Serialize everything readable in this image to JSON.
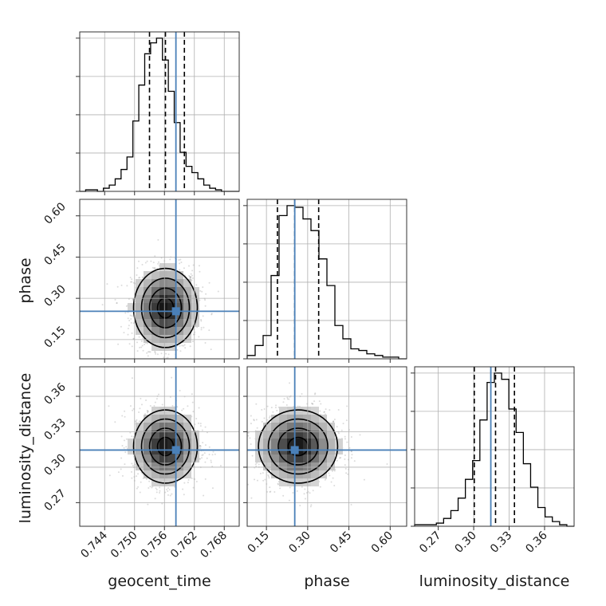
{
  "chart_data": {
    "type": "corner",
    "parameters": [
      {
        "name": "geocent_time",
        "label": "geocent_time",
        "range": [
          0.739,
          0.771
        ],
        "ticks": [
          0.744,
          0.75,
          0.756,
          0.762,
          0.768
        ],
        "tick_labels": [
          "0.744",
          "0.750",
          "0.756",
          "0.762",
          "0.768"
        ],
        "truth": 0.7583,
        "mean": 0.7562,
        "std": 0.0032,
        "quantiles": [
          0.753,
          0.7562,
          0.76
        ]
      },
      {
        "name": "phase",
        "label": "phase",
        "range": [
          0.08,
          0.66
        ],
        "ticks": [
          0.15,
          0.3,
          0.45,
          0.6
        ],
        "tick_labels": [
          "0.15",
          "0.30",
          "0.45",
          "0.60"
        ],
        "truth": 0.253,
        "mean": 0.265,
        "std": 0.072,
        "quantiles": [
          0.19,
          0.253,
          0.34
        ]
      },
      {
        "name": "luminosity_distance",
        "label": "luminosity_distance",
        "range": [
          0.25,
          0.385
        ],
        "ticks": [
          0.27,
          0.3,
          0.33,
          0.36
        ],
        "tick_labels": [
          "0.27",
          "0.30",
          "0.33",
          "0.36"
        ],
        "truth": 0.3145,
        "mean": 0.3175,
        "std": 0.0155,
        "quantiles": [
          0.3005,
          0.3185,
          0.3345
        ]
      }
    ],
    "histograms": [
      {
        "parameter": "geocent_time",
        "counts": [
          0,
          1,
          1,
          0,
          2,
          4,
          8,
          14,
          22,
          45,
          68,
          88,
          95,
          98,
          84,
          64,
          44,
          25,
          16,
          12,
          8,
          4,
          2,
          1,
          0,
          0,
          0
        ]
      },
      {
        "parameter": "phase",
        "counts": [
          2,
          8,
          14,
          50,
          86,
          92,
          91,
          84,
          77,
          60,
          44,
          20,
          12,
          6,
          5,
          3,
          2,
          1,
          1,
          0
        ]
      },
      {
        "parameter": "luminosity_distance",
        "counts": [
          1,
          1,
          1,
          2,
          5,
          10,
          18,
          30,
          42,
          68,
          92,
          98,
          94,
          75,
          60,
          40,
          25,
          12,
          6,
          3,
          1,
          0
        ]
      }
    ],
    "scatter_2d": [
      {
        "x": "geocent_time",
        "y": "phase",
        "truth": [
          0.7583,
          0.253
        ],
        "density_peak": [
          0.7557,
          0.235
        ]
      },
      {
        "x": "geocent_time",
        "y": "luminosity_distance",
        "truth": [
          0.7583,
          0.3145
        ],
        "density_peak": [
          0.7565,
          0.316
        ]
      },
      {
        "x": "phase",
        "y": "luminosity_distance",
        "truth": [
          0.253,
          0.3145
        ],
        "density_peak": [
          0.235,
          0.316
        ]
      }
    ],
    "truth_color": "#4a80b8",
    "quantile_line_style": "dashed",
    "grid": true
  }
}
